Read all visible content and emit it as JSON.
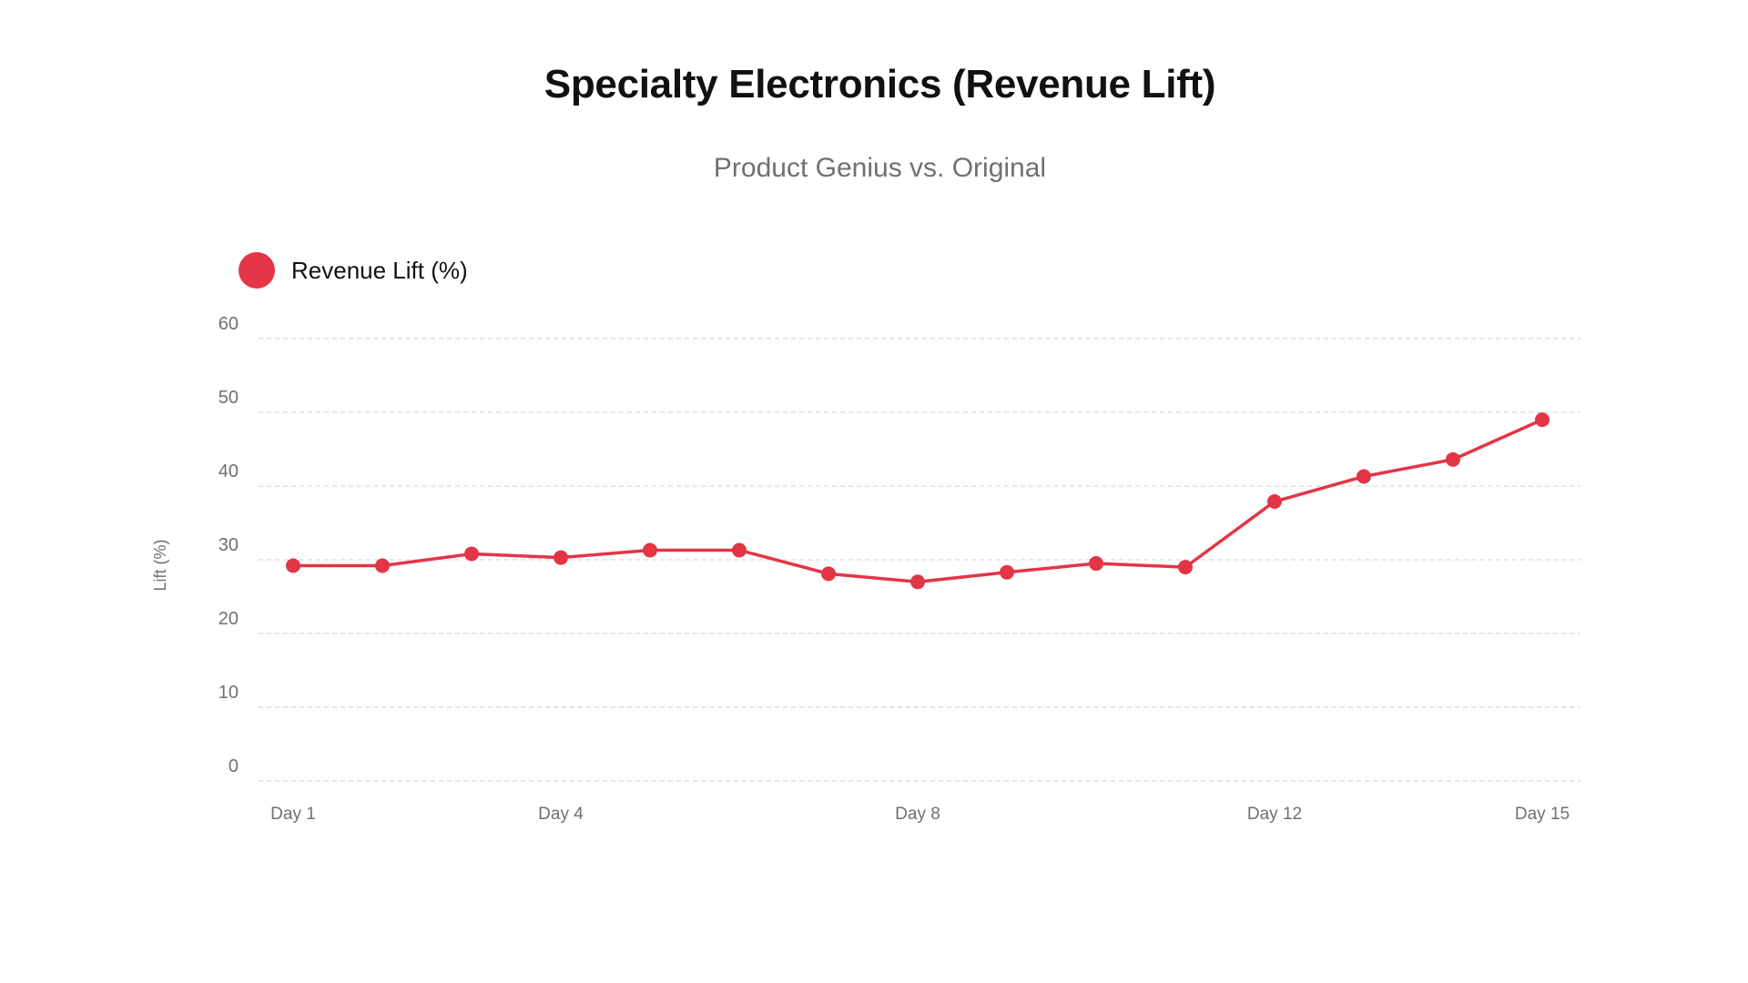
{
  "title": "Specialty Electronics (Revenue Lift)",
  "subtitle": "Product Genius vs. Original",
  "colors": {
    "series": "#e33545",
    "grid": "#d9d9d9",
    "tick": "#707070"
  },
  "chart_data": {
    "type": "line",
    "title": "Specialty Electronics (Revenue Lift)",
    "subtitle": "Product Genius vs. Original",
    "xlabel": "",
    "ylabel": "Lift (%)",
    "ylim": [
      0,
      60
    ],
    "yticks": [
      0,
      10,
      20,
      30,
      40,
      50,
      60
    ],
    "grid": true,
    "legend_position": "top-left",
    "x": [
      1,
      2,
      3,
      4,
      5,
      6,
      7,
      8,
      9,
      10,
      11,
      12,
      13,
      14,
      15
    ],
    "x_tick_labels": [
      {
        "x": 1,
        "label": "Day 1"
      },
      {
        "x": 4,
        "label": "Day 4"
      },
      {
        "x": 8,
        "label": "Day 8"
      },
      {
        "x": 12,
        "label": "Day 12"
      },
      {
        "x": 15,
        "label": "Day 15"
      }
    ],
    "series": [
      {
        "name": "Revenue Lift (%)",
        "values": [
          29.2,
          29.2,
          30.8,
          30.3,
          31.3,
          31.3,
          28.1,
          27.0,
          28.3,
          29.5,
          29.0,
          37.9,
          41.3,
          43.6,
          49.0
        ]
      }
    ]
  }
}
